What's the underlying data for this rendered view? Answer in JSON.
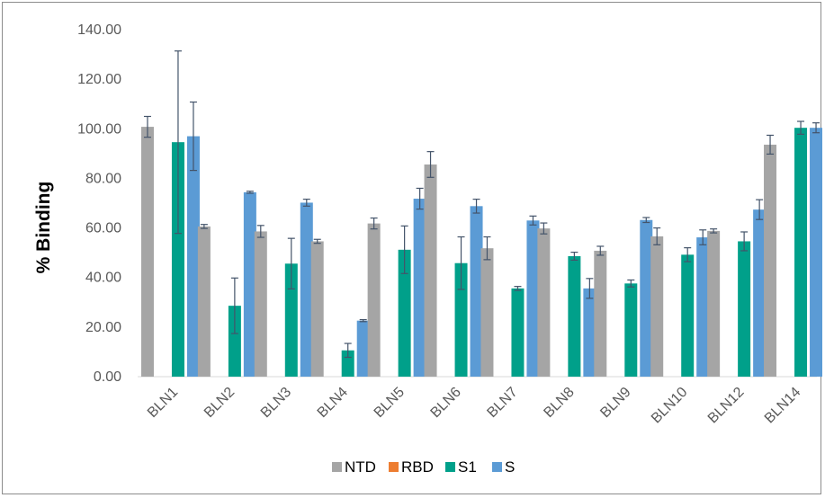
{
  "chart_data": {
    "type": "bar",
    "title": "",
    "xlabel": "",
    "ylabel": "% Binding",
    "ylim": [
      0,
      140
    ],
    "y_ticks": [
      "0.00",
      "20.00",
      "40.00",
      "60.00",
      "80.00",
      "100.00",
      "120.00",
      "140.00"
    ],
    "grid": false,
    "legend_position": "bottom",
    "categories": [
      "BLN1",
      "BLN2",
      "BLN3",
      "BLN4",
      "BLN5",
      "BLN6",
      "BLN7",
      "BLN8",
      "BLN9",
      "BLN10",
      "BLN12",
      "BLN14"
    ],
    "series": [
      {
        "name": "NTD",
        "color": "#a5a5a5",
        "values": [
          100.8,
          60.6,
          58.6,
          54.6,
          61.8,
          85.6,
          51.8,
          59.8,
          50.8,
          56.6,
          58.8,
          93.6
        ],
        "errors": [
          4.2,
          0.8,
          2.4,
          0.8,
          2.2,
          5.2,
          4.6,
          2.2,
          1.8,
          3.4,
          0.8,
          3.8
        ]
      },
      {
        "name": "RBD",
        "color": "#ed7d31",
        "values": [
          0,
          0,
          0,
          0,
          0,
          0,
          0,
          0,
          0,
          0,
          0,
          0
        ],
        "errors": [
          0,
          0,
          0,
          0,
          0,
          0,
          0,
          0,
          0,
          0,
          0,
          0
        ]
      },
      {
        "name": "S1",
        "color": "#00a08a",
        "values": [
          94.6,
          28.6,
          45.6,
          10.6,
          51.2,
          45.8,
          35.6,
          48.6,
          37.6,
          49.2,
          54.6,
          100.4
        ],
        "errors": [
          36.8,
          11.2,
          10.2,
          2.8,
          9.6,
          10.6,
          0.8,
          1.6,
          1.4,
          2.8,
          3.8,
          2.6
        ]
      },
      {
        "name": "S",
        "color": "#5b9bd5",
        "values": [
          97.0,
          74.4,
          70.2,
          22.6,
          71.8,
          68.8,
          63.0,
          35.6,
          63.2,
          56.2,
          67.4,
          100.4
        ],
        "errors": [
          13.8,
          0.4,
          1.4,
          0.4,
          4.2,
          2.8,
          1.8,
          4.0,
          1.0,
          3.0,
          4.0,
          2.0
        ]
      }
    ]
  }
}
